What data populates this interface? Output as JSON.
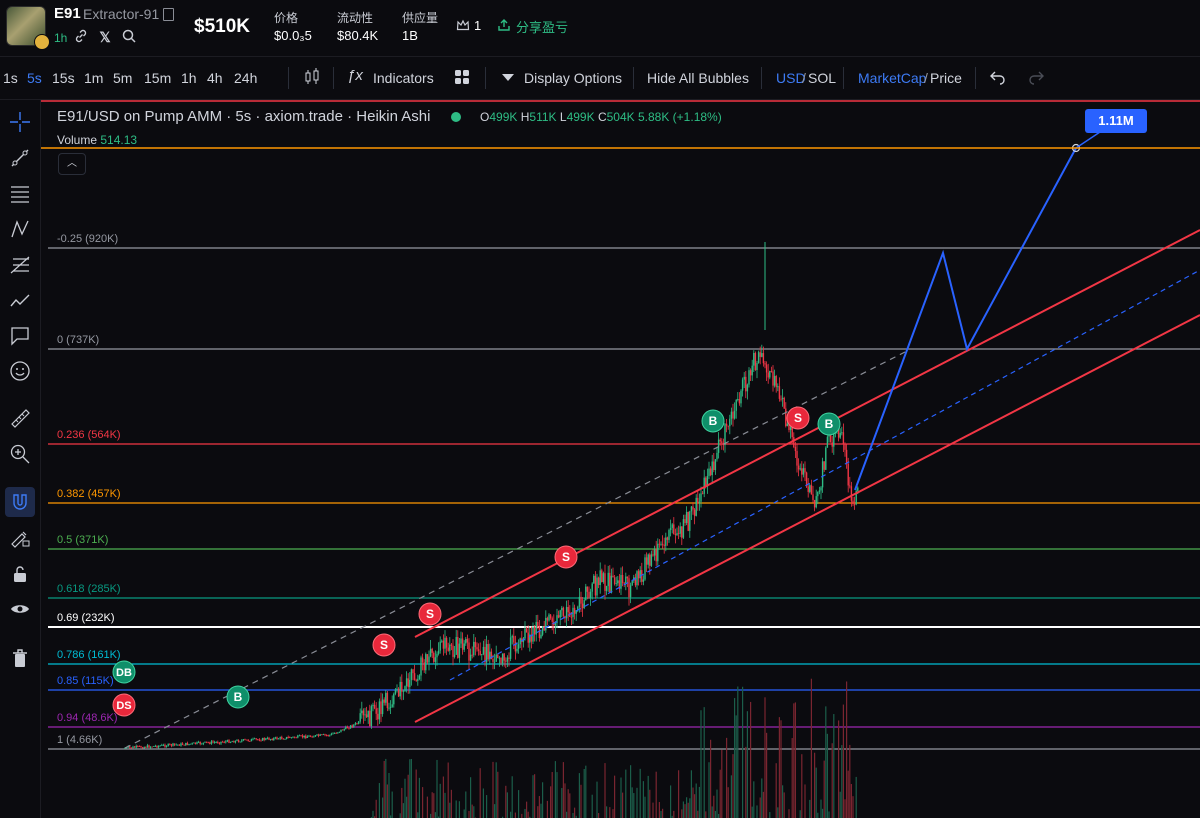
{
  "header": {
    "symbol": "E91",
    "token_name": "Extractor-91",
    "age": "1h",
    "market_cap": "$510K",
    "stats": [
      {
        "label": "价格",
        "value": "$0.0₃5"
      },
      {
        "label": "流动性",
        "value": "$80.4K"
      },
      {
        "label": "供应量",
        "value": "1B"
      }
    ],
    "holders": "1",
    "share_label": "分享盈亏",
    "icons": [
      "link-icon",
      "x-icon",
      "search-icon"
    ]
  },
  "toolbar": {
    "timeframes": [
      "1s",
      "5s",
      "15s",
      "1m",
      "5m",
      "15m",
      "1h",
      "4h",
      "24h"
    ],
    "active_timeframe": "5s",
    "indicators_label": "Indicators",
    "display_options_label": "Display Options",
    "hide_bubbles_label": "Hide All Bubbles",
    "usd_label": "USD",
    "sol_label": "SOL",
    "marketcap_label": "MarketCap",
    "price_label": "Price"
  },
  "chart": {
    "legend_title": "E91/USD on Pump AMM · 5s · axiom.trade · Heikin Ashi",
    "ohlc": {
      "o": "499K",
      "h": "511K",
      "l": "499K",
      "c": "504K",
      "change": "5.88K (+1.18%)"
    },
    "volume_label": "Volume",
    "volume_value": "514.13",
    "target_label": "1.11M",
    "fib_levels": [
      {
        "label": "-0.25 (920K)",
        "color": "#9598a1"
      },
      {
        "label": "0 (737K)",
        "color": "#9598a1"
      },
      {
        "label": "0.236 (564K)",
        "color": "#f23645"
      },
      {
        "label": "0.382 (457K)",
        "color": "#ff9800"
      },
      {
        "label": "0.5 (371K)",
        "color": "#4caf50"
      },
      {
        "label": "0.618 (285K)",
        "color": "#089981"
      },
      {
        "label": "0.69 (232K)",
        "color": "#ffffff"
      },
      {
        "label": "0.786 (161K)",
        "color": "#00bcd4"
      },
      {
        "label": "0.85 (115K)",
        "color": "#2962ff"
      },
      {
        "label": "0.94 (48.6K)",
        "color": "#9c27b0"
      },
      {
        "label": "1 (4.66K)",
        "color": "#9598a1"
      }
    ],
    "markers": [
      "DB",
      "DS",
      "B",
      "S",
      "S",
      "S",
      "B",
      "S",
      "B"
    ],
    "colors": {
      "up": "#2ebd85",
      "down": "#f23645",
      "channel": "#f23645",
      "projection": "#2962ff"
    }
  }
}
